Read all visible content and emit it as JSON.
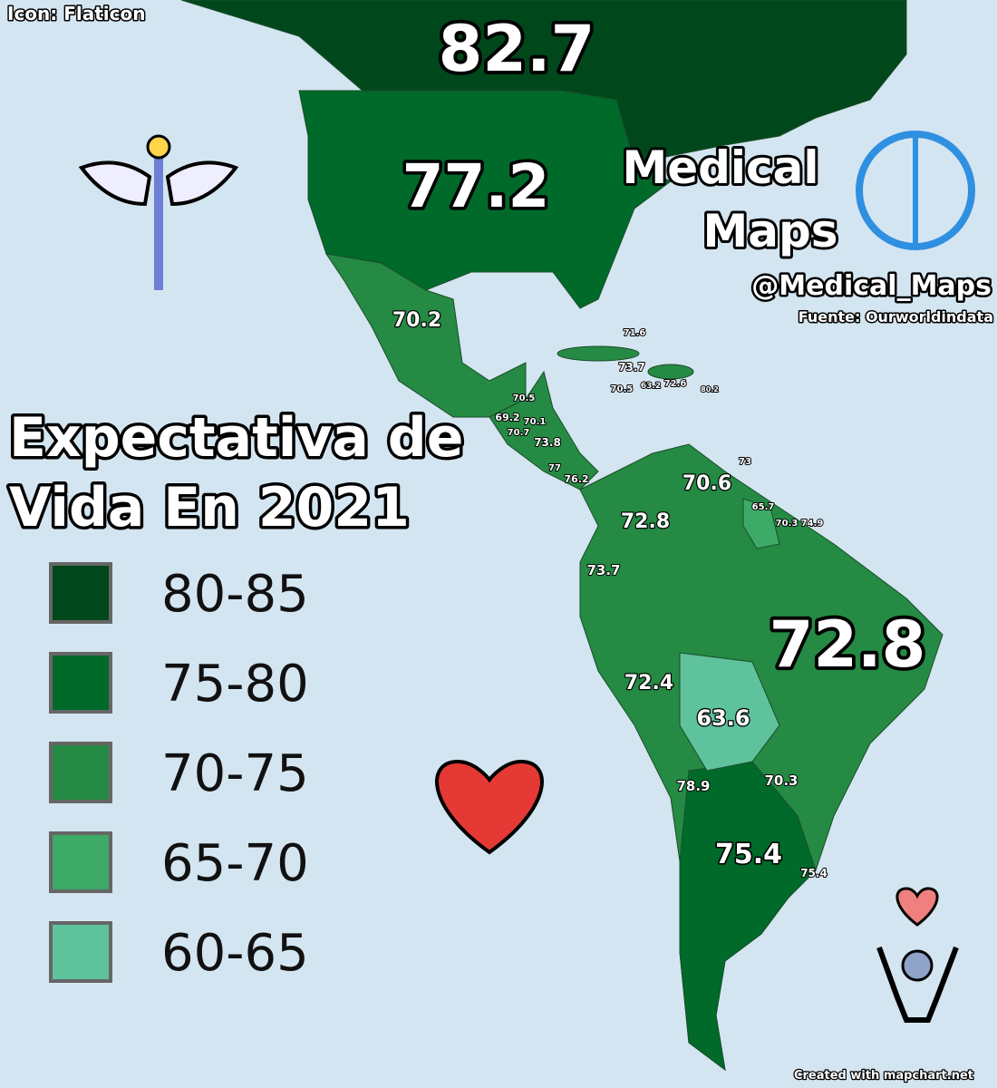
{
  "credit": "Icon: Flaticon",
  "brand": {
    "lines": [
      "Medical",
      "Maps"
    ],
    "handle": "@Medical_Maps",
    "source": "Fuente: Ourworldindata"
  },
  "title": {
    "lines": [
      "Expectativa de",
      "Vida En 2021"
    ]
  },
  "legend": [
    {
      "label": "80-85",
      "color": "#00471b"
    },
    {
      "label": "75-80",
      "color": "#006a2a"
    },
    {
      "label": "70-75",
      "color": "#258a44"
    },
    {
      "label": "65-70",
      "color": "#3daa68"
    },
    {
      "label": "60-65",
      "color": "#5ec39d"
    }
  ],
  "map": {
    "labels": [
      82.7,
      77.2,
      70.2,
      71.6,
      73.7,
      70.5,
      63.2,
      72.6,
      80.2,
      70.5,
      69.2,
      70.1,
      70.7,
      73.8,
      77,
      76.2,
      73,
      70.6,
      65.7,
      70.3,
      74.9,
      72.8,
      73.7,
      72.8,
      72.4,
      63.6,
      70.3,
      78.9,
      75.4,
      75.4
    ]
  },
  "footer": "Created with mapchart.net"
}
